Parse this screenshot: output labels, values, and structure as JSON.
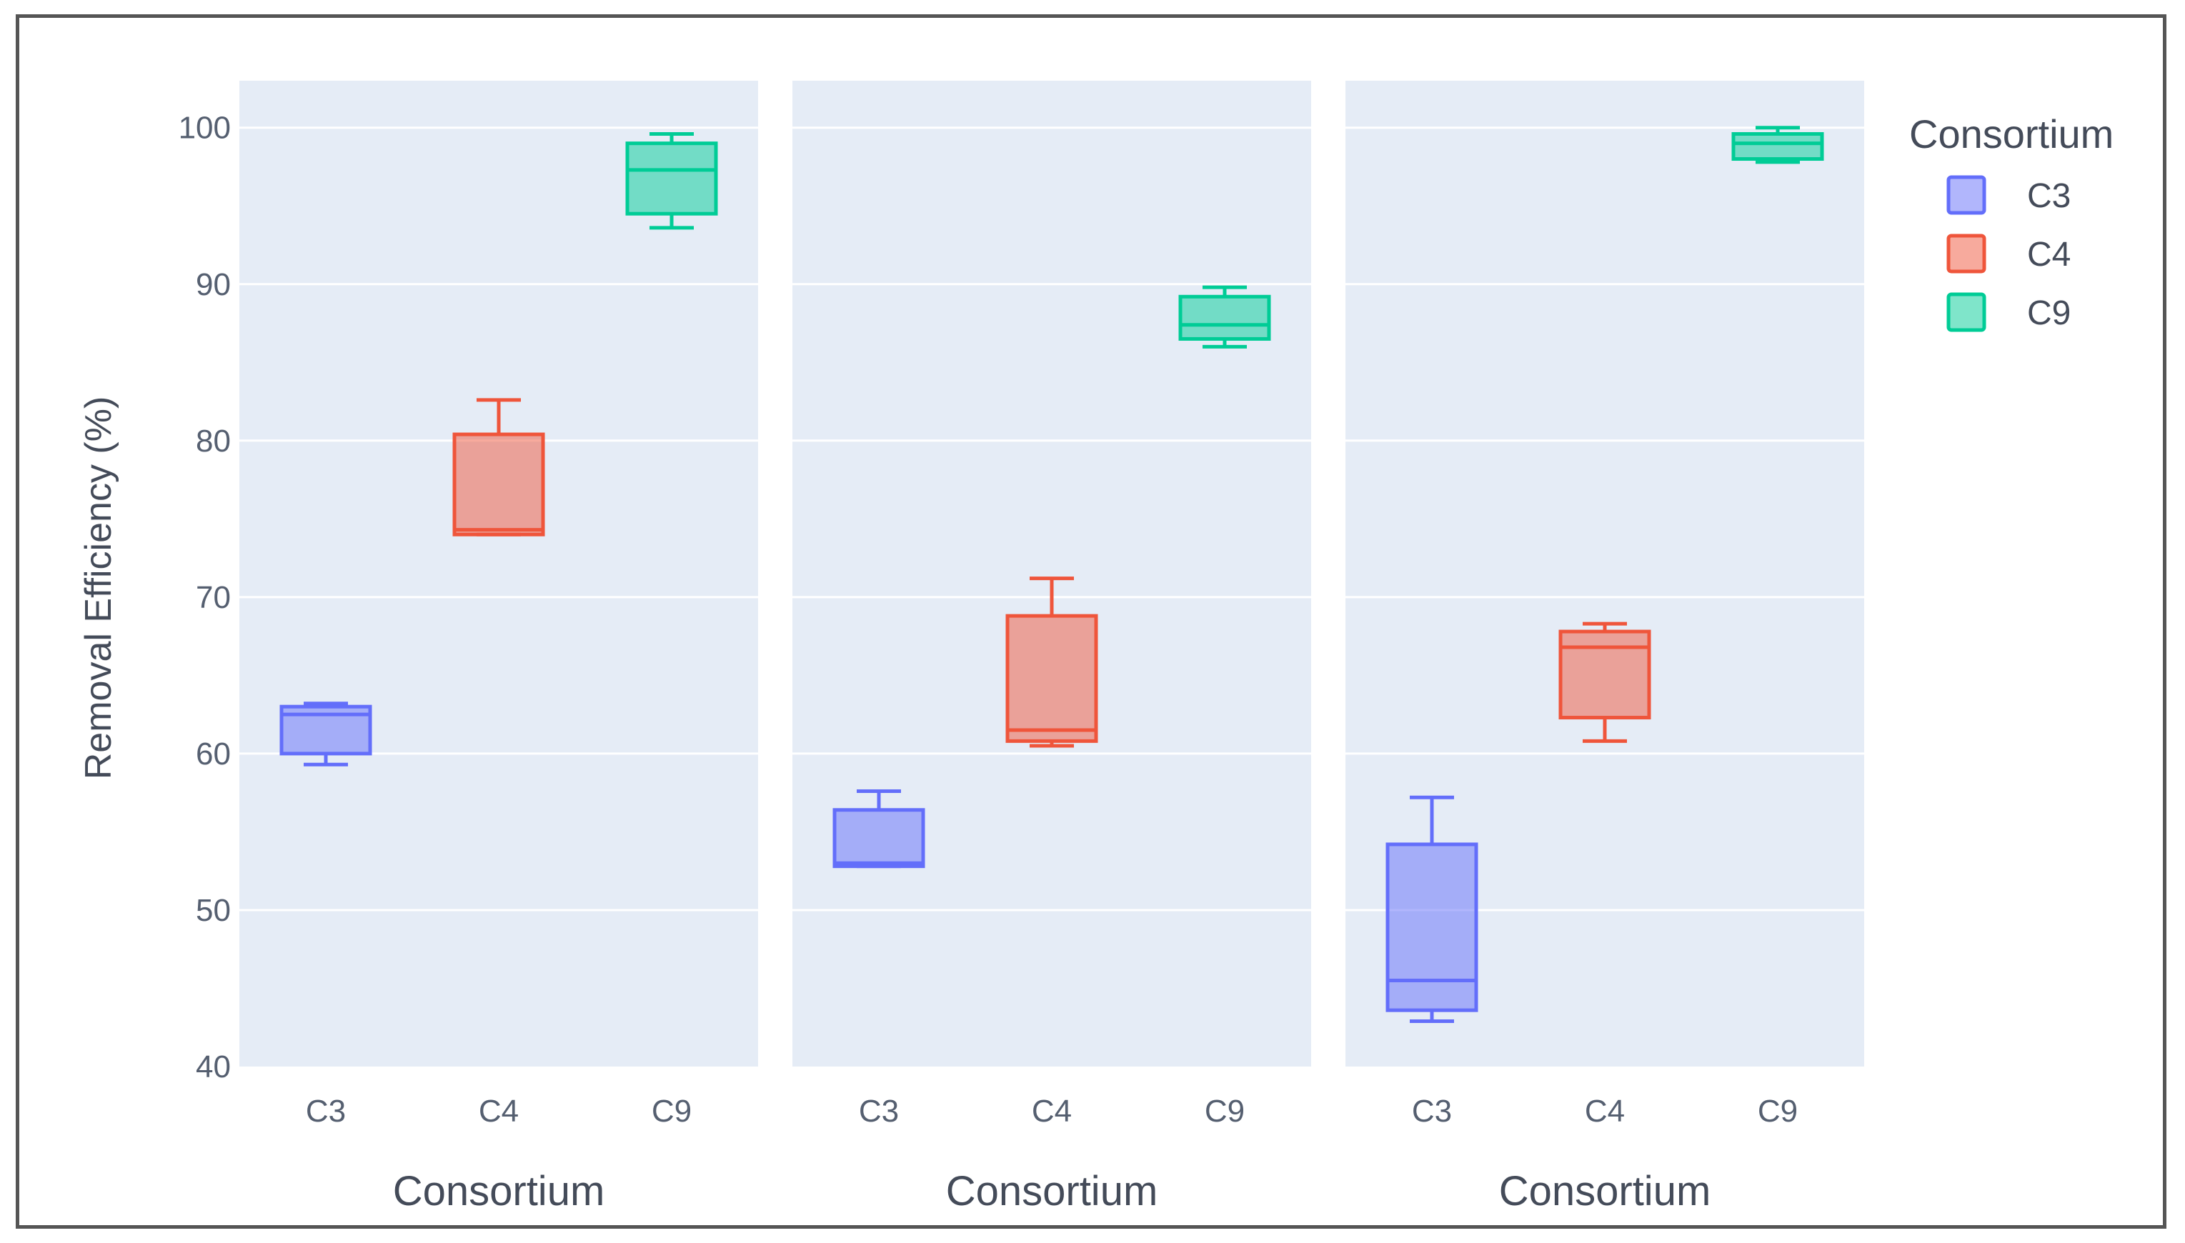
{
  "chart_data": {
    "type": "box",
    "ylabel": "Removal Efficiency (%)",
    "ylim": [
      40,
      103
    ],
    "yticks": [
      40,
      50,
      60,
      70,
      80,
      90,
      100
    ],
    "grid": true,
    "legend": {
      "title": "Consortium",
      "placement": "top-right",
      "entries": [
        {
          "name": "C3",
          "color": "#636efa"
        },
        {
          "name": "C4",
          "color": "#ef553b"
        },
        {
          "name": "C9",
          "color": "#00cc96"
        }
      ]
    },
    "panels": [
      {
        "xlabel": "Consortium",
        "categories": [
          "C3",
          "C4",
          "C9"
        ],
        "boxes": [
          {
            "name": "C3",
            "min": 59.3,
            "q1": 60.0,
            "median": 62.5,
            "q3": 63.0,
            "max": 63.2
          },
          {
            "name": "C4",
            "min": 74.0,
            "q1": 74.0,
            "median": 74.3,
            "q3": 80.4,
            "max": 82.6
          },
          {
            "name": "C9",
            "min": 93.6,
            "q1": 94.5,
            "median": 97.3,
            "q3": 99.0,
            "max": 99.6
          }
        ]
      },
      {
        "xlabel": "Consortium",
        "categories": [
          "C3",
          "C4",
          "C9"
        ],
        "boxes": [
          {
            "name": "C3",
            "min": 52.8,
            "q1": 52.8,
            "median": 53.0,
            "q3": 56.4,
            "max": 57.6
          },
          {
            "name": "C4",
            "min": 60.5,
            "q1": 60.8,
            "median": 61.5,
            "q3": 68.8,
            "max": 71.2
          },
          {
            "name": "C9",
            "min": 86.0,
            "q1": 86.5,
            "median": 87.4,
            "q3": 89.2,
            "max": 89.8
          }
        ]
      },
      {
        "xlabel": "Consortium",
        "categories": [
          "C3",
          "C4",
          "C9"
        ],
        "boxes": [
          {
            "name": "C3",
            "min": 42.9,
            "q1": 43.6,
            "median": 45.5,
            "q3": 54.2,
            "max": 57.2
          },
          {
            "name": "C4",
            "min": 60.8,
            "q1": 62.3,
            "median": 66.8,
            "q3": 67.8,
            "max": 68.3
          },
          {
            "name": "C9",
            "min": 97.8,
            "q1": 98.0,
            "median": 99.0,
            "q3": 99.6,
            "max": 100.0
          }
        ]
      }
    ]
  }
}
